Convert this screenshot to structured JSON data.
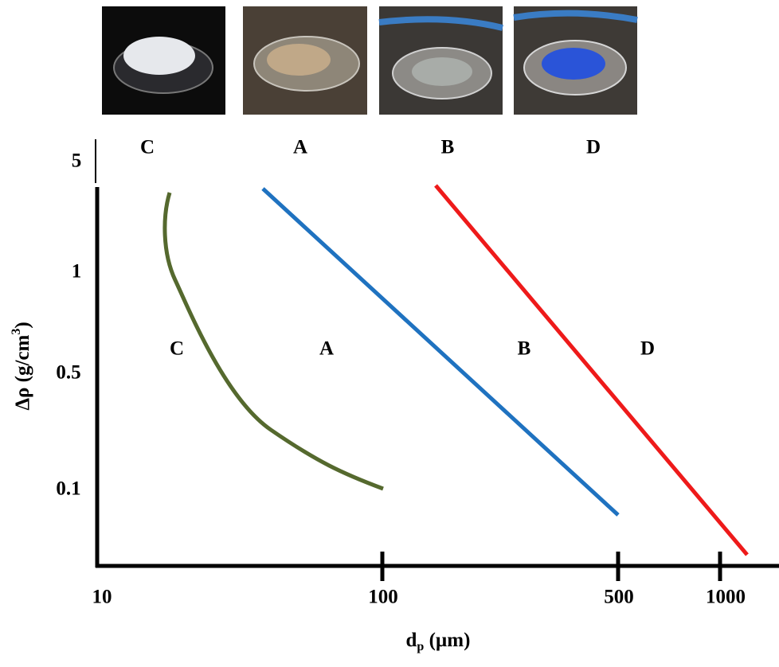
{
  "top_labels": [
    "C",
    "A",
    "B",
    "D"
  ],
  "region_labels": [
    "C",
    "A",
    "B",
    "D"
  ],
  "y_axis": {
    "label": "Δρ (g/cm",
    "label_sup": "3",
    "label_end": ")",
    "ticks": [
      "5",
      "1",
      "0.5",
      "0.1"
    ]
  },
  "x_axis": {
    "label": "d",
    "label_sub": "p",
    "label_end": " (µm)",
    "ticks": [
      "10",
      "100",
      "500",
      "1000"
    ]
  }
}
